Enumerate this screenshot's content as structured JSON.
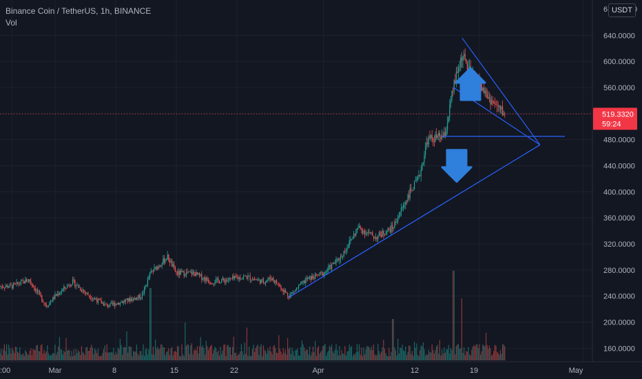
{
  "header": {
    "symbol": "Binance Coin / TetherUS, 1h, BINANCE",
    "indicator": "Vol"
  },
  "currency_badge": "USDT",
  "price_axis": {
    "labels": [
      "640.0000",
      "600.0000",
      "560.0000",
      "520.0000",
      "480.0000",
      "440.0000",
      "400.0000",
      "360.0000",
      "320.0000",
      "280.0000",
      "240.0000",
      "200.0000",
      "160.0000"
    ],
    "top_partial_label": "6",
    "top_partial_label_right": "0"
  },
  "time_axis": {
    "labels": [
      ":00",
      "Mar",
      "8",
      "15",
      "22",
      "Apr",
      "12",
      "19",
      "May"
    ]
  },
  "current_price": {
    "value": "519.3320",
    "countdown": "59:24",
    "color": "#f23645"
  },
  "colors": {
    "background": "#131722",
    "up": "#26a69a",
    "down": "#ef5350",
    "trendline": "#2962ff",
    "arrow": "#2f7fdc",
    "grid": "#1e222d"
  },
  "chart_data": {
    "type": "candlestick",
    "title": "Binance Coin / TetherUS, 1h, BINANCE",
    "xlabel": "",
    "ylabel": "",
    "ylim": [
      145,
      660
    ],
    "grid": true,
    "timeframe": "1h",
    "x_ticks": [
      ":00",
      "Mar",
      "8",
      "15",
      "22",
      "Apr",
      "12",
      "19",
      "May"
    ],
    "y_ticks": [
      160,
      200,
      240,
      280,
      320,
      360,
      400,
      440,
      480,
      520,
      560,
      600,
      640
    ],
    "price_path": [
      [
        "Feb 24",
        255
      ],
      [
        "Feb 26",
        265
      ],
      [
        "Feb 28",
        225
      ],
      [
        "Mar 1",
        240
      ],
      [
        "Mar 3",
        262
      ],
      [
        "Mar 5",
        240
      ],
      [
        "Mar 7",
        225
      ],
      [
        "Mar 9",
        232
      ],
      [
        "Mar 11",
        240
      ],
      [
        "Mar 12",
        275
      ],
      [
        "Mar 14",
        300
      ],
      [
        "Mar 15",
        275
      ],
      [
        "Mar 17",
        275
      ],
      [
        "Mar 19",
        262
      ],
      [
        "Mar 21",
        265
      ],
      [
        "Mar 23",
        270
      ],
      [
        "Mar 25",
        262
      ],
      [
        "Mar 26",
        268
      ],
      [
        "Mar 28",
        240
      ],
      [
        "Mar 30",
        265
      ],
      [
        "Apr 1",
        275
      ],
      [
        "Apr 3",
        300
      ],
      [
        "Apr 5",
        345
      ],
      [
        "Apr 7",
        330
      ],
      [
        "Apr 9",
        345
      ],
      [
        "Apr 11",
        400
      ],
      [
        "Apr 12",
        420
      ],
      [
        "Apr 13",
        480
      ],
      [
        "Apr 15",
        485
      ],
      [
        "Apr 16",
        560
      ],
      [
        "Apr 17",
        610
      ],
      [
        "Apr 18",
        580
      ],
      [
        "Apr 19",
        565
      ],
      [
        "Apr 20",
        545
      ],
      [
        "Apr 21",
        530
      ],
      [
        "Apr 22",
        519.332
      ]
    ],
    "volume": "bars along the bottom, taller spikes around Mar 12, Apr 9, Apr 16 and Apr 17",
    "annotations": {
      "lower_trendline": [
        [
          "Mar 28",
          238
        ],
        [
          "Apr 26",
          472
        ]
      ],
      "triangle_upper": [
        [
          "Apr 17",
          636
        ],
        [
          "Apr 26",
          472
        ]
      ],
      "triangle_lower": [
        [
          "Apr 16",
          560
        ],
        [
          "Apr 26",
          472
        ]
      ],
      "horizontal_level": 485,
      "arrow_up_near_price": 560,
      "arrow_down_near_price": 445
    },
    "current_price": 519.332
  }
}
